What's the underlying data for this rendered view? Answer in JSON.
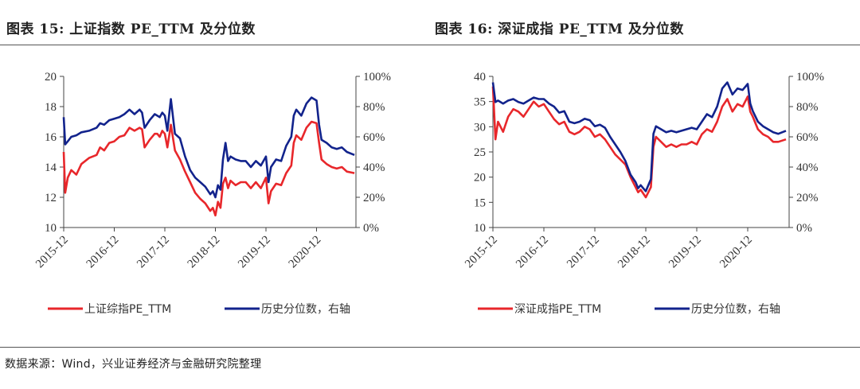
{
  "footer": {
    "source": "数据来源：Wind，兴业证券经济与金融研究院整理"
  },
  "chart_data": [
    {
      "type": "line",
      "title": "图表 15:  上证指数 PE_TTM 及分位数",
      "categories": [
        "2015-12",
        "2016-12",
        "2017-12",
        "2018-12",
        "2019-12",
        "2020-12"
      ],
      "y_ticks": [
        "20",
        "18",
        "16",
        "14",
        "12",
        "10"
      ],
      "y2_ticks": [
        "100%",
        "80%",
        "60%",
        "40%",
        "20%",
        "0%"
      ],
      "ylim": [
        10,
        20
      ],
      "y2lim": [
        0,
        100
      ],
      "legend_placement": "bottom",
      "colors": {
        "pe": "#e8272b",
        "pct": "#12238c"
      },
      "series": [
        {
          "name": "上证综指PE_TTM",
          "axis": "left",
          "x": [
            0,
            0.03,
            0.08,
            0.15,
            0.25,
            0.35,
            0.5,
            0.65,
            0.72,
            0.8,
            0.9,
            1.0,
            1.1,
            1.2,
            1.3,
            1.4,
            1.5,
            1.55,
            1.6,
            1.7,
            1.8,
            1.85,
            1.9,
            1.95,
            2.0,
            2.05,
            2.12,
            2.2,
            2.3,
            2.4,
            2.5,
            2.6,
            2.7,
            2.8,
            2.9,
            2.95,
            3.0,
            3.05,
            3.1,
            3.15,
            3.2,
            3.25,
            3.3,
            3.4,
            3.5,
            3.6,
            3.7,
            3.8,
            3.9,
            4.0,
            4.05,
            4.1,
            4.2,
            4.3,
            4.4,
            4.5,
            4.55,
            4.6,
            4.7,
            4.8,
            4.9,
            5.0,
            5.05,
            5.1,
            5.2,
            5.3,
            5.4,
            5.5,
            5.6,
            5.75
          ],
          "values": [
            15.0,
            12.3,
            13.3,
            13.8,
            13.5,
            14.2,
            14.6,
            14.8,
            15.3,
            15.1,
            15.6,
            15.7,
            16.0,
            16.1,
            16.6,
            16.4,
            16.6,
            16.5,
            15.3,
            15.8,
            16.2,
            16.2,
            16.0,
            16.4,
            16.2,
            15.3,
            16.8,
            15.1,
            14.5,
            13.7,
            13.0,
            12.3,
            11.9,
            11.6,
            11.1,
            11.3,
            10.8,
            11.7,
            11.3,
            12.9,
            13.3,
            12.6,
            13.1,
            12.8,
            13.0,
            13.0,
            12.6,
            13.0,
            12.6,
            13.3,
            11.6,
            12.4,
            12.9,
            12.8,
            13.6,
            14.1,
            15.6,
            16.1,
            15.8,
            16.6,
            17.0,
            16.9,
            15.6,
            14.5,
            14.2,
            14.0,
            13.9,
            14.0,
            13.7,
            13.6
          ]
        },
        {
          "name": "历史分位数，右轴",
          "axis": "right",
          "x": [
            0,
            0.03,
            0.08,
            0.15,
            0.25,
            0.35,
            0.5,
            0.65,
            0.72,
            0.8,
            0.9,
            1.0,
            1.1,
            1.2,
            1.3,
            1.4,
            1.5,
            1.55,
            1.6,
            1.7,
            1.8,
            1.85,
            1.9,
            1.95,
            2.0,
            2.05,
            2.12,
            2.2,
            2.3,
            2.4,
            2.5,
            2.6,
            2.7,
            2.8,
            2.9,
            2.95,
            3.0,
            3.05,
            3.1,
            3.15,
            3.2,
            3.25,
            3.3,
            3.4,
            3.5,
            3.6,
            3.7,
            3.8,
            3.9,
            4.0,
            4.05,
            4.1,
            4.2,
            4.3,
            4.4,
            4.5,
            4.55,
            4.6,
            4.7,
            4.8,
            4.9,
            5.0,
            5.05,
            5.1,
            5.2,
            5.3,
            5.4,
            5.5,
            5.6,
            5.75
          ],
          "values": [
            73,
            55,
            57,
            60,
            61,
            63,
            64,
            66,
            69,
            68,
            71,
            72,
            73,
            75,
            78,
            75,
            78,
            76,
            66,
            71,
            75,
            74,
            73,
            76,
            74,
            64,
            85,
            62,
            59,
            47,
            38,
            33,
            30,
            27,
            22,
            24,
            20,
            28,
            25,
            45,
            56,
            44,
            47,
            45,
            44,
            44,
            40,
            44,
            41,
            47,
            30,
            40,
            45,
            44,
            54,
            60,
            74,
            78,
            74,
            82,
            86,
            84,
            68,
            58,
            56,
            53,
            52,
            53,
            50,
            48
          ]
        }
      ]
    },
    {
      "type": "line",
      "title": "图表 16:  深证成指 PE_TTM 及分位数",
      "categories": [
        "2015-12",
        "2016-12",
        "2017-12",
        "2018-12",
        "2019-12",
        "2020-12"
      ],
      "y_ticks": [
        "40",
        "35",
        "30",
        "25",
        "20",
        "15",
        "10"
      ],
      "y2_ticks": [
        "100%",
        "80%",
        "60%",
        "40%",
        "20%",
        "0%"
      ],
      "ylim": [
        10,
        40
      ],
      "y2lim": [
        0,
        100
      ],
      "legend_placement": "bottom",
      "colors": {
        "pe": "#e8272b",
        "pct": "#12238c"
      },
      "series": [
        {
          "name": "深证成指PE_TTM",
          "axis": "left",
          "x": [
            0,
            0.05,
            0.1,
            0.2,
            0.3,
            0.4,
            0.5,
            0.6,
            0.7,
            0.8,
            0.9,
            1.0,
            1.1,
            1.2,
            1.3,
            1.4,
            1.5,
            1.6,
            1.7,
            1.8,
            1.9,
            2.0,
            2.1,
            2.2,
            2.3,
            2.4,
            2.5,
            2.6,
            2.7,
            2.8,
            2.85,
            2.9,
            3.0,
            3.05,
            3.1,
            3.15,
            3.2,
            3.3,
            3.4,
            3.5,
            3.6,
            3.7,
            3.8,
            3.9,
            4.0,
            4.1,
            4.2,
            4.3,
            4.4,
            4.5,
            4.6,
            4.7,
            4.8,
            4.9,
            5.0,
            5.05,
            5.1,
            5.2,
            5.3,
            5.4,
            5.5,
            5.6,
            5.75
          ],
          "values": [
            38.0,
            27.5,
            31.0,
            29.0,
            32.0,
            33.5,
            33.0,
            32.0,
            33.5,
            35.0,
            34.0,
            34.5,
            33.0,
            31.5,
            30.5,
            31.0,
            29.0,
            28.5,
            29.0,
            30.0,
            29.5,
            28.0,
            28.5,
            27.5,
            26.0,
            24.5,
            23.5,
            22.5,
            20.0,
            18.0,
            17.0,
            17.5,
            16.0,
            17.0,
            18.0,
            26.0,
            28.0,
            27.0,
            26.0,
            26.5,
            26.0,
            26.5,
            26.5,
            27.0,
            26.5,
            28.5,
            29.5,
            29.0,
            31.0,
            34.0,
            35.5,
            33.0,
            34.5,
            34.0,
            36.0,
            33.0,
            32.0,
            29.5,
            28.5,
            28.0,
            27.0,
            27.0,
            27.5
          ]
        },
        {
          "name": "历史分位数，右轴",
          "axis": "right",
          "x": [
            0,
            0.05,
            0.1,
            0.2,
            0.3,
            0.4,
            0.5,
            0.6,
            0.7,
            0.8,
            0.9,
            1.0,
            1.1,
            1.2,
            1.3,
            1.4,
            1.5,
            1.6,
            1.7,
            1.8,
            1.9,
            2.0,
            2.1,
            2.2,
            2.3,
            2.4,
            2.5,
            2.6,
            2.7,
            2.8,
            2.85,
            2.9,
            3.0,
            3.05,
            3.1,
            3.15,
            3.2,
            3.3,
            3.4,
            3.5,
            3.6,
            3.7,
            3.8,
            3.9,
            4.0,
            4.1,
            4.2,
            4.3,
            4.4,
            4.5,
            4.6,
            4.7,
            4.8,
            4.9,
            5.0,
            5.05,
            5.1,
            5.2,
            5.3,
            5.4,
            5.5,
            5.6,
            5.75
          ],
          "values": [
            96,
            83,
            84,
            82,
            84,
            85,
            83,
            82,
            84,
            86,
            85,
            85,
            82,
            80,
            76,
            77,
            70,
            69,
            70,
            72,
            71,
            67,
            68,
            66,
            60,
            55,
            50,
            44,
            35,
            30,
            26,
            28,
            24,
            28,
            32,
            62,
            67,
            65,
            63,
            64,
            63,
            64,
            65,
            66,
            65,
            70,
            75,
            73,
            80,
            92,
            96,
            88,
            92,
            91,
            95,
            82,
            77,
            70,
            67,
            65,
            63,
            62,
            64
          ]
        }
      ]
    }
  ]
}
